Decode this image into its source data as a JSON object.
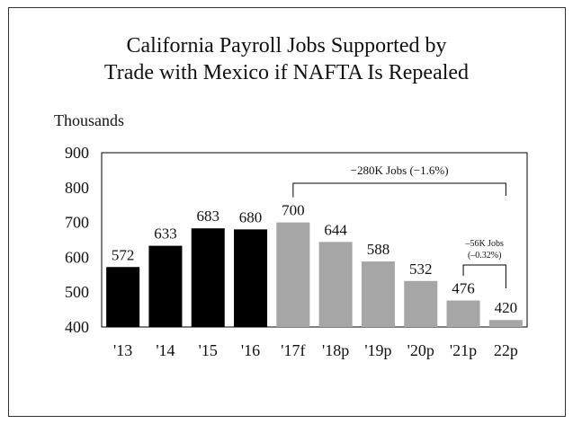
{
  "chart_data": {
    "type": "bar",
    "title_lines": [
      "California Payroll Jobs Supported by",
      "Trade with Mexico if NAFTA Is Repealed"
    ],
    "ylabel": "Thousands",
    "ylim": [
      400,
      900
    ],
    "yticks": [
      "900",
      "800",
      "700",
      "600",
      "500",
      "400"
    ],
    "ytick_values": [
      900,
      800,
      700,
      600,
      500,
      400
    ],
    "categories": [
      "'13",
      "'14",
      "'15",
      "'16",
      "'17f",
      "'18p",
      "'19p",
      "'20p",
      "'21p",
      "22p"
    ],
    "values": [
      572,
      633,
      683,
      680,
      700,
      644,
      588,
      532,
      476,
      420
    ],
    "value_labels": [
      "572",
      "633",
      "683",
      "680",
      "700",
      "644",
      "588",
      "532",
      "476",
      "420"
    ],
    "bar_colors": [
      "#000000",
      "#000000",
      "#000000",
      "#000000",
      "#a6a6a6",
      "#a6a6a6",
      "#a6a6a6",
      "#a6a6a6",
      "#a6a6a6",
      "#a6a6a6"
    ],
    "grid": false,
    "legend": "none",
    "annotations": [
      {
        "text_lines": [
          "−280K Jobs (−1.6%)"
        ],
        "from_category": 4,
        "to_category": 9
      },
      {
        "text_lines": [
          "–56K Jobs",
          "(–0.32%)"
        ],
        "from_category": 8,
        "to_category": 9
      }
    ]
  }
}
